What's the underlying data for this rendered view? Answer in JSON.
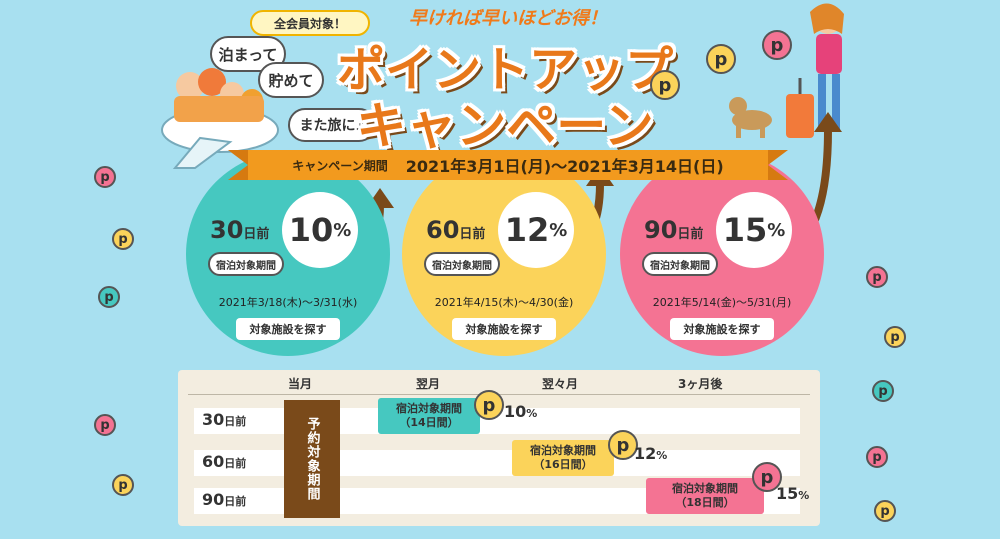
{
  "header": {
    "badge": "全会員対象！",
    "bubbles": [
      "泊まって",
      "貯めて",
      "また旅に♪"
    ],
    "tagline": "早ければ早いほどお得！",
    "title_line1": "ポイントアップ",
    "title_line2": "キャンペーン"
  },
  "ribbon": {
    "label": "キャンペーン期間",
    "dates": "2021年3月1日(月)～2021年3月14日(日)"
  },
  "tiers": [
    {
      "days": "30",
      "days_unit": "日前",
      "pct": "10",
      "pct_unit": "%",
      "stay_label": "宿泊対象期間",
      "stay_range": "2021年3/18(木)～3/31(水)",
      "button": "対象施設を探す",
      "color": "#46c8c0"
    },
    {
      "days": "60",
      "days_unit": "日前",
      "pct": "12",
      "pct_unit": "%",
      "stay_label": "宿泊対象期間",
      "stay_range": "2021年4/15(木)～4/30(金)",
      "button": "対象施設を探す",
      "color": "#fbd35a"
    },
    {
      "days": "90",
      "days_unit": "日前",
      "pct": "15",
      "pct_unit": "%",
      "stay_label": "宿泊対象期間",
      "stay_range": "2021年5/14(金)～5/31(月)",
      "button": "対象施設を探す",
      "color": "#f47393"
    }
  ],
  "schedule": {
    "columns": [
      "当月",
      "翌月",
      "翌々月",
      "3ヶ月後"
    ],
    "booking_label": "予約対象期間",
    "rows": [
      {
        "days": "30",
        "unit": "日前",
        "stay_label": "宿泊対象期間",
        "stay_days": "（14日間）",
        "pct": "10",
        "pct_unit": "%"
      },
      {
        "days": "60",
        "unit": "日前",
        "stay_label": "宿泊対象期間",
        "stay_days": "（16日間）",
        "pct": "12",
        "pct_unit": "%"
      },
      {
        "days": "90",
        "unit": "日前",
        "stay_label": "宿泊対象期間",
        "stay_days": "（18日間）",
        "pct": "15",
        "pct_unit": "%"
      }
    ]
  },
  "coin_letter": "p",
  "colors": {
    "background": "#a8e0f0",
    "accent": "#e8781a",
    "teal": "#46c8c0",
    "yellow": "#fbd35a",
    "pink": "#f47393",
    "brown": "#7a4a1a"
  }
}
